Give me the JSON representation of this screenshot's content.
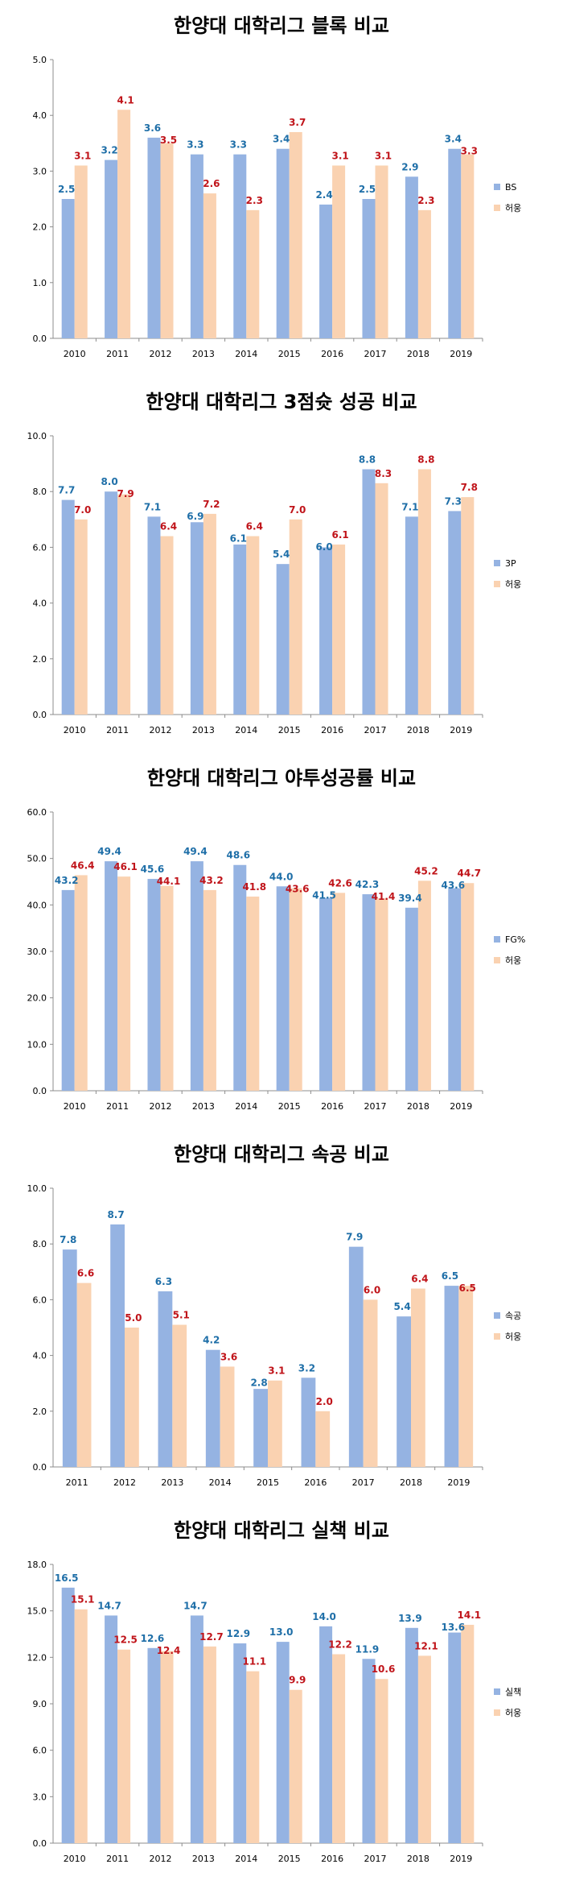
{
  "colors": {
    "blue_bar": "#95b3e2",
    "orange_bar": "#fad2b1",
    "blue_label": "#1f6fa8",
    "red_label": "#c0141a"
  },
  "chart_data": [
    {
      "type": "bar",
      "title": "한양대 대학리그 블록 비교",
      "categories": [
        "2010",
        "2011",
        "2012",
        "2013",
        "2014",
        "2015",
        "2016",
        "2017",
        "2018",
        "2019"
      ],
      "series": [
        {
          "name": "BS",
          "values": [
            2.5,
            3.2,
            3.6,
            3.3,
            3.3,
            3.4,
            2.4,
            2.5,
            2.9,
            3.4
          ]
        },
        {
          "name": "허웅",
          "values": [
            3.1,
            4.1,
            3.5,
            2.6,
            2.3,
            3.7,
            3.1,
            3.1,
            2.3,
            3.3
          ]
        }
      ],
      "ylim": [
        0,
        5
      ],
      "yticks": [
        "0.0",
        "1.0",
        "2.0",
        "3.0",
        "4.0",
        "5.0"
      ],
      "legend": "right"
    },
    {
      "type": "bar",
      "title": "한양대 대학리그 3점슛 성공 비교",
      "categories": [
        "2010",
        "2011",
        "2012",
        "2013",
        "2014",
        "2015",
        "2016",
        "2017",
        "2018",
        "2019"
      ],
      "series": [
        {
          "name": "3P",
          "values": [
            7.7,
            8.0,
            7.1,
            6.9,
            6.1,
            5.4,
            6.0,
            8.8,
            7.1,
            7.3
          ]
        },
        {
          "name": "허웅",
          "values": [
            7.0,
            7.9,
            6.4,
            7.2,
            6.4,
            7.0,
            6.1,
            8.3,
            8.8,
            7.8
          ]
        }
      ],
      "ylim": [
        0,
        10
      ],
      "yticks": [
        "0.0",
        "2.0",
        "4.0",
        "6.0",
        "8.0",
        "10.0"
      ],
      "legend": "right"
    },
    {
      "type": "bar",
      "title": "한양대 대학리그 야투성공률 비교",
      "categories": [
        "2010",
        "2011",
        "2012",
        "2013",
        "2014",
        "2015",
        "2016",
        "2017",
        "2018",
        "2019"
      ],
      "series": [
        {
          "name": "FG%",
          "values": [
            43.2,
            49.4,
            45.6,
            49.4,
            48.6,
            44.0,
            41.5,
            42.3,
            39.4,
            43.6
          ]
        },
        {
          "name": "허웅",
          "values": [
            46.4,
            46.1,
            44.1,
            43.2,
            41.8,
            43.6,
            42.6,
            41.4,
            45.2,
            44.7
          ]
        }
      ],
      "ylim": [
        0,
        60
      ],
      "yticks": [
        "0.0",
        "10.0",
        "20.0",
        "30.0",
        "40.0",
        "50.0",
        "60.0"
      ],
      "legend": "right"
    },
    {
      "type": "bar",
      "title": "한양대 대학리그 속공 비교",
      "categories": [
        "2011",
        "2012",
        "2013",
        "2014",
        "2015",
        "2016",
        "2017",
        "2018",
        "2019"
      ],
      "series": [
        {
          "name": "속공",
          "values": [
            7.8,
            8.7,
            6.3,
            4.2,
            2.8,
            3.2,
            7.9,
            5.4,
            6.5
          ]
        },
        {
          "name": "허웅",
          "values": [
            6.6,
            5.0,
            5.1,
            3.6,
            3.1,
            2.0,
            6.0,
            6.4,
            6.5
          ]
        }
      ],
      "ylim": [
        0,
        10
      ],
      "yticks": [
        "0.0",
        "2.0",
        "4.0",
        "6.0",
        "8.0",
        "10.0"
      ],
      "legend": "right"
    },
    {
      "type": "bar",
      "title": "한양대 대학리그 실책 비교",
      "categories": [
        "2010",
        "2011",
        "2012",
        "2013",
        "2014",
        "2015",
        "2016",
        "2017",
        "2018",
        "2019"
      ],
      "series": [
        {
          "name": "실책",
          "values": [
            16.5,
            14.7,
            12.6,
            14.7,
            12.9,
            13.0,
            14.0,
            11.9,
            13.9,
            13.6
          ]
        },
        {
          "name": "허웅",
          "values": [
            15.1,
            12.5,
            12.4,
            12.7,
            11.1,
            9.9,
            12.2,
            10.6,
            12.1,
            14.1
          ]
        }
      ],
      "ylim": [
        0,
        18
      ],
      "yticks": [
        "0.0",
        "3.0",
        "6.0",
        "9.0",
        "12.0",
        "15.0",
        "18.0"
      ],
      "legend": "right"
    }
  ]
}
